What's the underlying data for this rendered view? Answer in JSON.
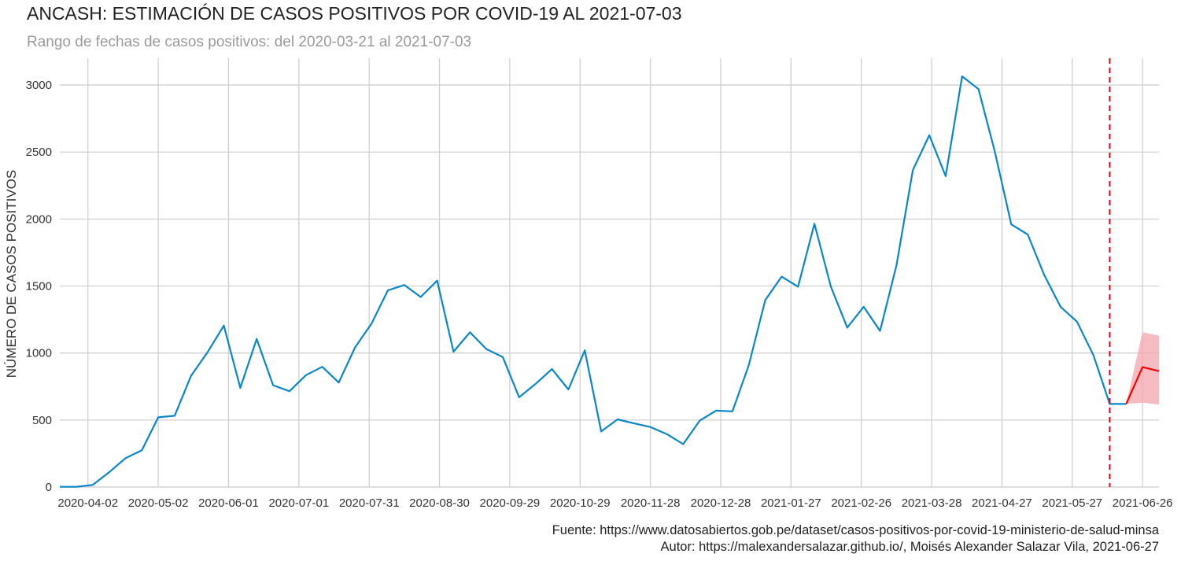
{
  "title": "ANCASH: ESTIMACIÓN DE CASOS POSITIVOS POR COVID-19 AL 2021-07-03",
  "subtitle": "Rango de fechas de casos positivos: del 2020-03-21 al 2021-07-03",
  "footer": {
    "source": "Fuente: https://www.datosabiertos.gob.pe/dataset/casos-positivos-por-covid-19-ministerio-de-salud-minsa",
    "author": "Autor: https://malexandersalazar.github.io/, Moisés Alexander Salazar Vila, 2021-06-27"
  },
  "colors": {
    "observed": "#0a87c8",
    "forecast": "#ff0000",
    "band": "#f4a6ad",
    "grid": "#d0d0d0",
    "cutoff": "#e5001a"
  },
  "chart_data": {
    "type": "line",
    "xlabel": "",
    "ylabel": "NÚMERO DE CASOS POSITIVOS",
    "ylim": [
      0,
      3200
    ],
    "xlim": [
      "2020-03-21",
      "2021-07-03"
    ],
    "grid": true,
    "legend": "none",
    "xticks": [
      "2020-04-02",
      "2020-05-02",
      "2020-06-01",
      "2020-07-01",
      "2020-07-31",
      "2020-08-30",
      "2020-09-29",
      "2020-10-29",
      "2020-11-28",
      "2020-12-28",
      "2021-01-27",
      "2021-02-26",
      "2021-03-28",
      "2021-04-27",
      "2021-05-27",
      "2021-06-26"
    ],
    "yticks": [
      0,
      500,
      1000,
      1500,
      2000,
      2500,
      3000
    ],
    "cutoff_date": "2021-06-12",
    "series": [
      {
        "kind": "observed",
        "x": [
          "2020-03-21",
          "2020-03-28",
          "2020-04-04",
          "2020-04-11",
          "2020-04-18",
          "2020-04-25",
          "2020-05-02",
          "2020-05-09",
          "2020-05-16",
          "2020-05-23",
          "2020-05-30",
          "2020-06-06",
          "2020-06-13",
          "2020-06-20",
          "2020-06-27",
          "2020-07-04",
          "2020-07-11",
          "2020-07-18",
          "2020-07-25",
          "2020-08-01",
          "2020-08-08",
          "2020-08-15",
          "2020-08-22",
          "2020-08-29",
          "2020-09-05",
          "2020-09-12",
          "2020-09-19",
          "2020-09-26",
          "2020-10-03",
          "2020-10-10",
          "2020-10-17",
          "2020-10-24",
          "2020-10-31",
          "2020-11-07",
          "2020-11-14",
          "2020-11-21",
          "2020-11-28",
          "2020-12-05",
          "2020-12-12",
          "2020-12-19",
          "2020-12-26",
          "2021-01-02",
          "2021-01-09",
          "2021-01-16",
          "2021-01-23",
          "2021-01-30",
          "2021-02-06",
          "2021-02-13",
          "2021-02-20",
          "2021-02-27",
          "2021-03-06",
          "2021-03-13",
          "2021-03-20",
          "2021-03-27",
          "2021-04-03",
          "2021-04-10",
          "2021-04-17",
          "2021-04-24",
          "2021-05-01",
          "2021-05-08",
          "2021-05-15",
          "2021-05-22",
          "2021-05-29",
          "2021-06-05",
          "2021-06-12",
          "2021-06-19"
        ],
        "values": [
          2,
          2,
          15,
          110,
          215,
          275,
          520,
          532,
          830,
          1005,
          1205,
          740,
          1105,
          760,
          715,
          835,
          897,
          780,
          1042,
          1220,
          1468,
          1508,
          1418,
          1540,
          1010,
          1155,
          1030,
          970,
          670,
          770,
          880,
          728,
          1020,
          415,
          505,
          475,
          448,
          395,
          320,
          495,
          570,
          565,
          910,
          1395,
          1570,
          1495,
          1965,
          1495,
          1190,
          1345,
          1165,
          1655,
          2365,
          2625,
          2320,
          3065,
          2970,
          2500,
          1960,
          1885,
          1585,
          1345,
          1235,
          985,
          620,
          620
        ]
      },
      {
        "kind": "forecast",
        "x": [
          "2021-06-19",
          "2021-06-26",
          "2021-07-03"
        ],
        "values": [
          620,
          895,
          865
        ],
        "lower": [
          620,
          630,
          615
        ],
        "upper": [
          620,
          1155,
          1130
        ]
      }
    ]
  }
}
